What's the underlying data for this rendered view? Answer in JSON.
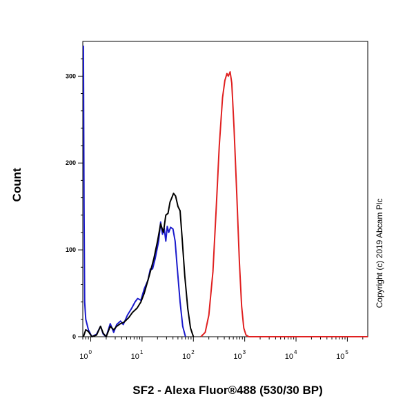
{
  "chart_data": {
    "type": "line",
    "xlabel": "SF2 - Alexa Fluor®488 (530/30 BP)",
    "ylabel": "Count",
    "x_scale": "log",
    "xlim": [
      0.7,
      250000
    ],
    "ylim": [
      0,
      340
    ],
    "yticks": [
      0,
      100,
      200,
      300
    ],
    "xticks": [
      {
        "base": "10",
        "exp": "0",
        "value": 1
      },
      {
        "base": "10",
        "exp": "1",
        "value": 10
      },
      {
        "base": "10",
        "exp": "2",
        "value": 100
      },
      {
        "base": "10",
        "exp": "3",
        "value": 1000
      },
      {
        "base": "10",
        "exp": "4",
        "value": 10000
      },
      {
        "base": "10",
        "exp": "5",
        "value": 100000
      }
    ],
    "grid": false,
    "series": [
      {
        "color": "#1a1acc",
        "points": [
          [
            0.72,
            335
          ],
          [
            0.74,
            150
          ],
          [
            0.76,
            40
          ],
          [
            0.8,
            20
          ],
          [
            0.9,
            8
          ],
          [
            1.05,
            0
          ],
          [
            1.3,
            3
          ],
          [
            1.55,
            12
          ],
          [
            1.75,
            3
          ],
          [
            2.0,
            0
          ],
          [
            2.4,
            15
          ],
          [
            2.8,
            5
          ],
          [
            3.2,
            14
          ],
          [
            3.8,
            18
          ],
          [
            4.3,
            14
          ],
          [
            5.2,
            25
          ],
          [
            6.3,
            33
          ],
          [
            7.3,
            40
          ],
          [
            8.2,
            44
          ],
          [
            9.5,
            42
          ],
          [
            11,
            55
          ],
          [
            13,
            65
          ],
          [
            14.5,
            78
          ],
          [
            16,
            78
          ],
          [
            18,
            90
          ],
          [
            21,
            110
          ],
          [
            23,
            132
          ],
          [
            25,
            118
          ],
          [
            27,
            125
          ],
          [
            29,
            110
          ],
          [
            31,
            127
          ],
          [
            33,
            120
          ],
          [
            36,
            126
          ],
          [
            40,
            124
          ],
          [
            44,
            110
          ],
          [
            48,
            82
          ],
          [
            55,
            40
          ],
          [
            62,
            12
          ],
          [
            70,
            0
          ]
        ]
      },
      {
        "color": "#000000",
        "points": [
          [
            0.72,
            0
          ],
          [
            0.8,
            8
          ],
          [
            0.9,
            6
          ],
          [
            1.05,
            0
          ],
          [
            1.3,
            2
          ],
          [
            1.55,
            12
          ],
          [
            1.75,
            4
          ],
          [
            2.0,
            0
          ],
          [
            2.4,
            12
          ],
          [
            2.8,
            8
          ],
          [
            3.2,
            12
          ],
          [
            3.8,
            15
          ],
          [
            4.5,
            17
          ],
          [
            5.5,
            22
          ],
          [
            6.5,
            28
          ],
          [
            8,
            33
          ],
          [
            9.5,
            40
          ],
          [
            11,
            50
          ],
          [
            13,
            65
          ],
          [
            15,
            78
          ],
          [
            17,
            90
          ],
          [
            20,
            110
          ],
          [
            23,
            130
          ],
          [
            26,
            120
          ],
          [
            29,
            140
          ],
          [
            32,
            142
          ],
          [
            35,
            155
          ],
          [
            38,
            160
          ],
          [
            41,
            165
          ],
          [
            45,
            162
          ],
          [
            50,
            150
          ],
          [
            55,
            145
          ],
          [
            60,
            115
          ],
          [
            68,
            70
          ],
          [
            78,
            32
          ],
          [
            88,
            10
          ],
          [
            100,
            0
          ]
        ]
      },
      {
        "color": "#e02020",
        "points": [
          [
            140,
            0
          ],
          [
            170,
            5
          ],
          [
            200,
            25
          ],
          [
            240,
            75
          ],
          [
            280,
            150
          ],
          [
            320,
            220
          ],
          [
            370,
            275
          ],
          [
            410,
            295
          ],
          [
            450,
            303
          ],
          [
            480,
            300
          ],
          [
            520,
            305
          ],
          [
            560,
            292
          ],
          [
            620,
            240
          ],
          [
            700,
            165
          ],
          [
            790,
            85
          ],
          [
            870,
            35
          ],
          [
            960,
            10
          ],
          [
            1060,
            2
          ],
          [
            1200,
            0
          ],
          [
            250000,
            0
          ]
        ]
      }
    ]
  },
  "copyright": "Copyright (c) 2019 Abcam Plc"
}
